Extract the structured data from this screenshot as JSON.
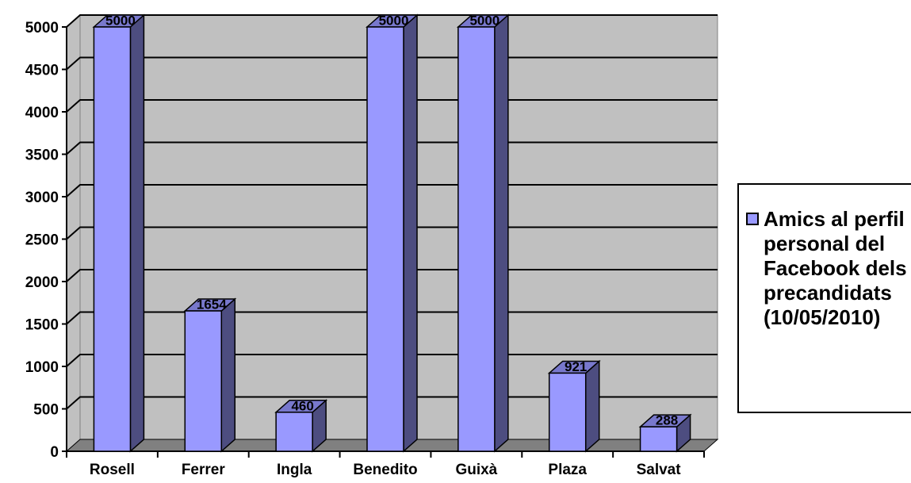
{
  "chart_data": {
    "type": "bar",
    "categories": [
      "Rosell",
      "Ferrer",
      "Ingla",
      "Benedito",
      "Guixà",
      "Plaza",
      "Salvat"
    ],
    "series": [
      {
        "name": "Amics al perfil personal del Facebook dels precandidats (10/05/2010)",
        "values": [
          5000,
          1654,
          460,
          5000,
          5000,
          921,
          288
        ]
      }
    ],
    "ylim": [
      0,
      5000
    ],
    "yticks": [
      0,
      500,
      1000,
      1500,
      2000,
      2500,
      3000,
      3500,
      4000,
      4500,
      5000
    ],
    "grid": true,
    "legend_position": "right",
    "three_d": true,
    "colors": {
      "bar_front": "#9999ff",
      "bar_side": "#4d4d80",
      "bar_top": "#7878cc",
      "plot_back": "#c0c0c0",
      "plot_floor": "#808080"
    }
  },
  "legend": {
    "label": "Amics al perfil personal del Facebook dels precandidats (10/05/2010)"
  }
}
